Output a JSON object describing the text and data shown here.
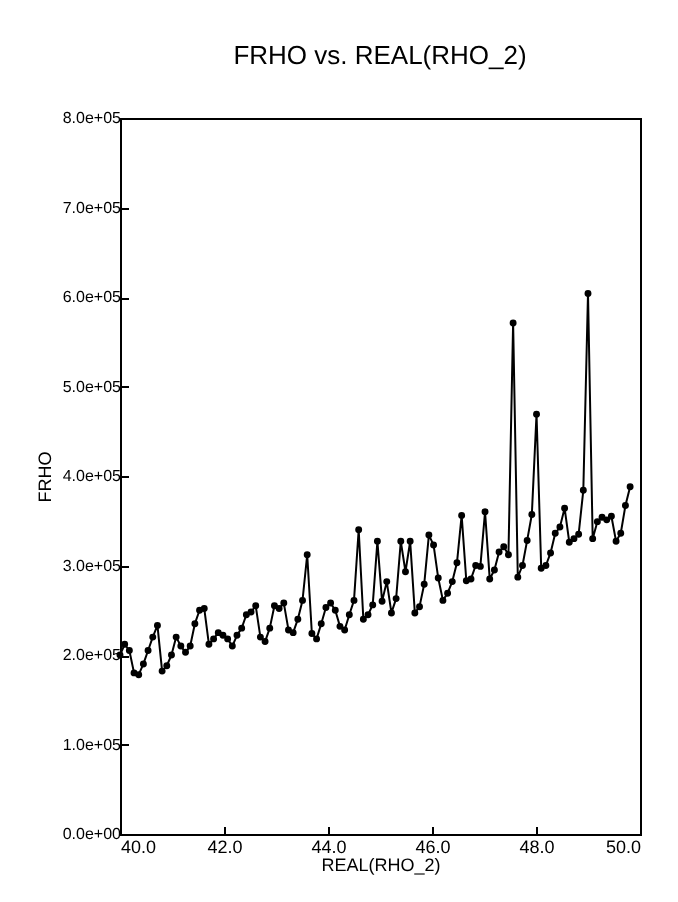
{
  "chart_data": {
    "type": "line",
    "title": "FRHO vs. REAL(RHO_2)",
    "xlabel": "REAL(RHO_2)",
    "ylabel": "FRHO",
    "x": [
      40.0,
      40.09,
      40.18,
      40.27,
      40.36,
      40.45,
      40.54,
      40.63,
      40.72,
      40.81,
      40.9,
      40.99,
      41.08,
      41.17,
      41.26,
      41.35,
      41.44,
      41.53,
      41.62,
      41.71,
      41.8,
      41.89,
      41.98,
      42.07,
      42.16,
      42.25,
      42.34,
      42.43,
      42.52,
      42.61,
      42.7,
      42.79,
      42.88,
      42.97,
      43.06,
      43.15,
      43.24,
      43.33,
      43.42,
      43.51,
      43.6,
      43.69,
      43.78,
      43.87,
      43.96,
      44.05,
      44.14,
      44.23,
      44.32,
      44.41,
      44.5,
      44.59,
      44.68,
      44.77,
      44.86,
      44.95,
      45.04,
      45.13,
      45.22,
      45.31,
      45.4,
      45.49,
      45.58,
      45.67,
      45.76,
      45.85,
      45.94,
      46.03,
      46.12,
      46.21,
      46.3,
      46.39,
      46.48,
      46.57,
      46.66,
      46.75,
      46.84,
      46.93,
      47.02,
      47.11,
      47.2,
      47.29,
      47.38,
      47.47,
      47.56,
      47.65,
      47.74,
      47.83,
      47.92,
      48.01,
      48.1,
      48.19,
      48.28,
      48.37,
      48.46,
      48.55,
      48.64,
      48.73,
      48.82,
      48.91,
      49.0,
      49.09,
      49.18,
      49.27,
      49.36,
      49.45,
      49.54,
      49.63,
      49.72,
      49.81
    ],
    "values": [
      200000,
      212000,
      205000,
      180000,
      178000,
      190000,
      205000,
      220000,
      233000,
      182000,
      188000,
      200000,
      220000,
      210000,
      203000,
      210000,
      235000,
      250000,
      252000,
      212000,
      218000,
      225000,
      222000,
      218000,
      210000,
      222000,
      230000,
      245000,
      248000,
      255000,
      220000,
      215000,
      230000,
      255000,
      252000,
      258000,
      228000,
      225000,
      240000,
      261000,
      312000,
      224000,
      218000,
      235000,
      253000,
      258000,
      250000,
      232000,
      228000,
      245000,
      261000,
      340000,
      240000,
      245000,
      256000,
      327000,
      260000,
      282000,
      247000,
      263000,
      327000,
      293000,
      327000,
      247000,
      254000,
      279000,
      334000,
      323000,
      286000,
      261000,
      269000,
      282000,
      303000,
      356000,
      283000,
      285000,
      300000,
      299000,
      360000,
      285000,
      295000,
      315000,
      321000,
      312000,
      571000,
      287000,
      300000,
      328000,
      357000,
      469000,
      297000,
      300000,
      314000,
      336000,
      343000,
      364000,
      326000,
      330000,
      335000,
      384000,
      604000,
      330000,
      349000,
      354000,
      351000,
      355000,
      327000,
      336000,
      367000,
      388000
    ],
    "color": "#000000",
    "marker": "circle",
    "line_style": "solid",
    "xlim": [
      40,
      50
    ],
    "xticks": [
      {
        "value": 40,
        "label": "40.0"
      },
      {
        "value": 42,
        "label": "42.0"
      },
      {
        "value": 44,
        "label": "44.0"
      },
      {
        "value": 46,
        "label": "46.0"
      },
      {
        "value": 48,
        "label": "48.0"
      },
      {
        "value": 50,
        "label": "50.0"
      }
    ],
    "ylim": [
      0,
      800000
    ],
    "yticks": [
      {
        "value": 0,
        "label": "0.0e+00"
      },
      {
        "value": 100000,
        "label": "1.0e+05"
      },
      {
        "value": 200000,
        "label": "2.0e+05"
      },
      {
        "value": 300000,
        "label": "3.0e+05"
      },
      {
        "value": 400000,
        "label": "4.0e+05"
      },
      {
        "value": 500000,
        "label": "5.0e+05"
      },
      {
        "value": 600000,
        "label": "6.0e+05"
      },
      {
        "value": 700000,
        "label": "7.0e+05"
      },
      {
        "value": 800000,
        "label": "8.0e+05"
      }
    ]
  }
}
